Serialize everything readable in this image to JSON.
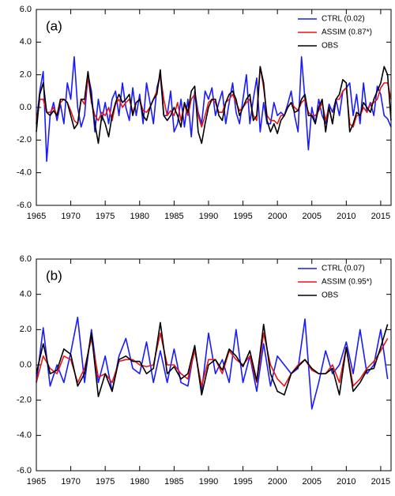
{
  "chart_data": [
    {
      "type": "line",
      "panel_label": "(a)",
      "legend": "top-right",
      "grid": false,
      "xlim": [
        1965,
        2016.5
      ],
      "ylim": [
        -6,
        6
      ],
      "xticks": [
        1965,
        1970,
        1975,
        1980,
        1985,
        1990,
        1995,
        2000,
        2005,
        2010,
        2015
      ],
      "yticks": [
        {
          "value": -6,
          "label": "-6.0"
        },
        {
          "value": -4,
          "label": "-4.0"
        },
        {
          "value": -2,
          "label": "-2.0"
        },
        {
          "value": 0,
          "label": "0.0"
        },
        {
          "value": 2,
          "label": "2.0"
        },
        {
          "value": 4,
          "label": "4.0"
        },
        {
          "value": 6,
          "label": "6.0"
        }
      ],
      "x": [
        1965,
        1965.5,
        1966,
        1966.5,
        1967,
        1967.5,
        1968,
        1968.5,
        1969,
        1969.5,
        1970,
        1970.5,
        1971,
        1971.5,
        1972,
        1972.5,
        1973,
        1973.5,
        1974,
        1974.5,
        1975,
        1975.5,
        1976,
        1976.5,
        1977,
        1977.5,
        1978,
        1978.5,
        1979,
        1979.5,
        1980,
        1980.5,
        1981,
        1981.5,
        1982,
        1982.5,
        1983,
        1983.5,
        1984,
        1984.5,
        1985,
        1985.5,
        1986,
        1986.5,
        1987,
        1987.5,
        1988,
        1988.5,
        1989,
        1989.5,
        1990,
        1990.5,
        1991,
        1991.5,
        1992,
        1992.5,
        1993,
        1993.5,
        1994,
        1994.5,
        1995,
        1995.5,
        1996,
        1996.5,
        1997,
        1997.5,
        1998,
        1998.5,
        1999,
        1999.5,
        2000,
        2000.5,
        2001,
        2001.5,
        2002,
        2002.5,
        2003,
        2003.5,
        2004,
        2004.5,
        2005,
        2005.5,
        2006,
        2006.5,
        2007,
        2007.5,
        2008,
        2008.5,
        2009,
        2009.5,
        2010,
        2010.5,
        2011,
        2011.5,
        2012,
        2012.5,
        2013,
        2013.5,
        2014,
        2014.5,
        2015,
        2015.5,
        2016,
        2016.5
      ],
      "series": [
        {
          "name": "CTRL (0.02)",
          "color": "#1a1aff",
          "values": [
            -1.0,
            1.0,
            2.2,
            -3.3,
            -0.5,
            0.3,
            -0.8,
            0.2,
            -1.0,
            1.5,
            0.5,
            3.1,
            0.0,
            -1.2,
            -0.5,
            2.0,
            1.0,
            -1.5,
            0.5,
            -0.8,
            0.3,
            -1.0,
            0.5,
            1.0,
            -0.5,
            1.5,
            0.0,
            -0.8,
            1.2,
            -0.5,
            0.8,
            -1.0,
            1.5,
            0.3,
            -1.0,
            1.2,
            2.0,
            -0.5,
            -0.5,
            1.0,
            -1.5,
            -1.0,
            0.5,
            -1.2,
            0.5,
            -1.8,
            1.0,
            -0.3,
            -1.0,
            1.0,
            0.5,
            1.2,
            -0.5,
            0.3,
            1.0,
            -1.0,
            0.3,
            1.5,
            -0.3,
            -1.0,
            0.5,
            2.0,
            -1.0,
            0.5,
            1.8,
            -1.5,
            0.3,
            -1.0,
            -1.0,
            0.3,
            -0.5,
            -0.3,
            -0.5,
            0.2,
            1.0,
            -0.5,
            -1.5,
            3.1,
            0.5,
            -2.6,
            0.0,
            -1.0,
            0.5,
            -0.5,
            -1.0,
            0.2,
            -0.3,
            0.5,
            -0.5,
            1.0,
            1.2,
            1.5,
            -0.5,
            0.8,
            -1.0,
            1.5,
            -0.3,
            0.3,
            -0.5,
            1.3,
            0.8,
            -0.5,
            -0.7,
            -1.2
          ]
        },
        {
          "name": "ASSIM (0.87*)",
          "color": "#e8141a",
          "values": [
            -1.0,
            0.5,
            0.5,
            -0.3,
            -0.3,
            0.0,
            -0.5,
            0.3,
            0.5,
            0.3,
            -0.2,
            -0.8,
            -1.0,
            0.5,
            0.2,
            1.9,
            0.3,
            -0.5,
            -0.8,
            -0.3,
            -0.5,
            0.0,
            -0.8,
            0.2,
            0.5,
            0.0,
            0.3,
            0.5,
            -0.3,
            0.3,
            0.5,
            -0.2,
            -0.3,
            0.0,
            0.5,
            1.0,
            2.0,
            0.5,
            -0.5,
            -0.2,
            -0.5,
            0.3,
            -0.8,
            0.2,
            -0.5,
            0.5,
            0.8,
            -0.5,
            -1.2,
            -0.5,
            0.3,
            0.5,
            0.3,
            -0.3,
            -0.3,
            0.3,
            0.5,
            0.8,
            0.3,
            -0.2,
            0.0,
            0.3,
            0.5,
            -0.5,
            -0.8,
            2.5,
            1.2,
            -0.5,
            -0.8,
            -0.8,
            -1.0,
            -0.5,
            -0.5,
            0.0,
            0.3,
            0.0,
            -0.2,
            0.3,
            0.5,
            -0.3,
            -0.5,
            -0.5,
            -0.2,
            0.3,
            -0.8,
            0.0,
            -1.0,
            0.5,
            0.5,
            1.0,
            1.2,
            -1.0,
            -1.2,
            -0.5,
            -0.5,
            0.0,
            -0.3,
            0.2,
            0.3,
            0.5,
            1.2,
            1.5,
            1.5,
            0.5
          ]
        },
        {
          "name": "OBS",
          "color": "#000000",
          "values": [
            -1.5,
            0.8,
            1.5,
            -0.3,
            -0.5,
            -0.2,
            -0.5,
            0.5,
            0.5,
            0.3,
            -0.5,
            -1.3,
            -1.0,
            0.5,
            0.5,
            2.2,
            0.5,
            -1.0,
            -2.2,
            -0.5,
            -1.0,
            -1.8,
            -0.5,
            0.3,
            0.8,
            0.3,
            0.5,
            0.8,
            -0.5,
            0.3,
            0.5,
            -0.5,
            -0.8,
            0.0,
            0.5,
            0.8,
            2.3,
            -0.5,
            -0.8,
            -0.5,
            0.0,
            -0.5,
            -1.2,
            0.3,
            -0.3,
            1.0,
            1.3,
            -1.5,
            -2.2,
            -1.0,
            0.0,
            0.5,
            0.5,
            -0.5,
            -0.8,
            0.3,
            0.8,
            1.0,
            0.5,
            -0.5,
            0.0,
            0.5,
            0.8,
            -0.8,
            -0.5,
            2.5,
            1.5,
            -0.8,
            -1.5,
            -1.0,
            -1.6,
            -0.8,
            -0.5,
            0.0,
            0.3,
            -0.3,
            -0.2,
            0.5,
            0.8,
            -0.5,
            -0.5,
            -1.0,
            0.0,
            0.5,
            -1.5,
            0.0,
            -1.0,
            0.5,
            0.8,
            1.7,
            1.5,
            -1.5,
            -1.0,
            -0.3,
            -0.5,
            0.3,
            0.0,
            -0.3,
            0.5,
            1.0,
            1.5,
            2.5,
            2.0,
            -0.8
          ]
        }
      ]
    },
    {
      "type": "line",
      "panel_label": "(b)",
      "legend": "top-right",
      "grid": false,
      "xlim": [
        1965,
        2016.5
      ],
      "ylim": [
        -6,
        6
      ],
      "xticks": [
        1965,
        1970,
        1975,
        1980,
        1985,
        1990,
        1995,
        2000,
        2005,
        2010,
        2015
      ],
      "yticks": [
        {
          "value": -6,
          "label": "-6.0"
        },
        {
          "value": -4,
          "label": "-4.0"
        },
        {
          "value": -2,
          "label": "-2.0"
        },
        {
          "value": 0,
          "label": "0.0"
        },
        {
          "value": 2,
          "label": "2.0"
        },
        {
          "value": 4,
          "label": "4.0"
        },
        {
          "value": 6,
          "label": "6.0"
        }
      ],
      "x": [
        1965,
        1966,
        1967,
        1968,
        1969,
        1970,
        1971,
        1972,
        1973,
        1974,
        1975,
        1976,
        1977,
        1978,
        1979,
        1980,
        1981,
        1982,
        1983,
        1984,
        1985,
        1986,
        1987,
        1988,
        1989,
        1990,
        1991,
        1992,
        1993,
        1994,
        1995,
        1996,
        1997,
        1998,
        1999,
        2000,
        2001,
        2002,
        2003,
        2004,
        2005,
        2006,
        2007,
        2008,
        2009,
        2010,
        2011,
        2012,
        2013,
        2014,
        2015,
        2016
      ],
      "series": [
        {
          "name": "CTRL (0.07)",
          "color": "#1a1aff",
          "values": [
            -1.0,
            2.1,
            -1.2,
            0.0,
            -1.0,
            0.7,
            2.7,
            -1.0,
            2.0,
            -1.0,
            0.5,
            -1.5,
            0.5,
            1.5,
            -0.2,
            -0.5,
            1.3,
            -1.0,
            0.8,
            -1.0,
            0.9,
            -1.0,
            -1.2,
            1.0,
            -1.5,
            1.8,
            -0.5,
            0.3,
            -1.0,
            2.0,
            -1.0,
            0.5,
            -1.5,
            1.2,
            -1.2,
            0.5,
            0.0,
            -0.5,
            -0.2,
            2.6,
            -2.5,
            -1.0,
            0.8,
            -0.5,
            0.0,
            1.3,
            -0.5,
            2.0,
            -0.5,
            0.0,
            2.0,
            -0.8
          ]
        },
        {
          "name": "ASSIM (0.95*)",
          "color": "#e8141a",
          "values": [
            -1.0,
            0.5,
            -0.2,
            -0.5,
            0.5,
            0.3,
            -1.0,
            -0.2,
            1.5,
            -0.7,
            -0.5,
            -1.0,
            0.2,
            0.3,
            0.3,
            0.0,
            -0.1,
            0.0,
            1.8,
            0.0,
            0.0,
            -0.5,
            -0.8,
            0.8,
            -1.2,
            0.3,
            0.3,
            -0.5,
            0.8,
            0.3,
            0.0,
            0.5,
            -1.0,
            1.8,
            0.0,
            -0.8,
            -1.2,
            -0.5,
            0.0,
            0.3,
            -0.3,
            -0.5,
            -0.5,
            0.0,
            -1.0,
            1.0,
            -1.2,
            -0.8,
            -0.2,
            0.2,
            0.8,
            1.5
          ]
        },
        {
          "name": "OBS",
          "color": "#000000",
          "values": [
            -0.5,
            1.2,
            -0.5,
            -0.3,
            0.9,
            0.6,
            -1.2,
            -0.5,
            1.8,
            -1.8,
            -0.5,
            -1.5,
            0.3,
            0.5,
            0.2,
            0.2,
            -0.5,
            -0.2,
            2.4,
            -0.5,
            -0.1,
            -0.8,
            -0.5,
            1.1,
            -1.7,
            0.0,
            0.3,
            -0.3,
            0.9,
            0.5,
            -0.1,
            0.8,
            -0.9,
            2.3,
            -0.5,
            -1.5,
            -1.7,
            -0.5,
            -0.1,
            0.3,
            -0.2,
            -0.5,
            -0.5,
            -0.2,
            -1.7,
            1.0,
            -1.5,
            -1.0,
            -0.3,
            -0.2,
            1.0,
            2.3
          ]
        }
      ]
    }
  ]
}
